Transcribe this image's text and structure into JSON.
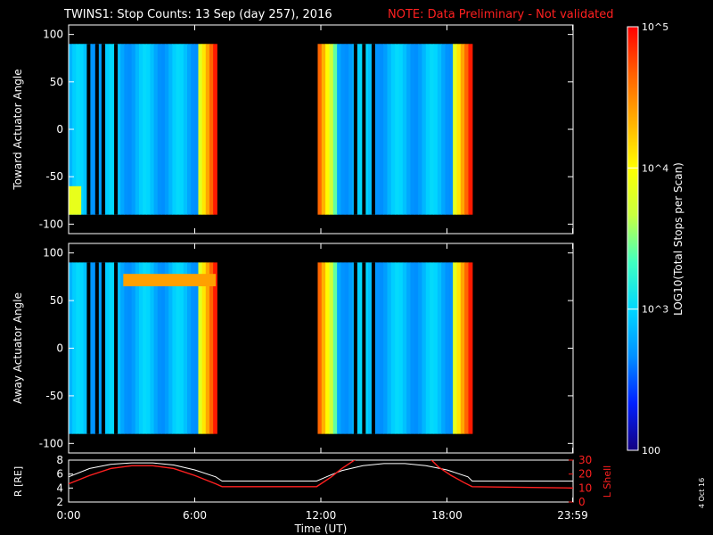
{
  "header": {
    "title": "TWINS1: Stop Counts: 13 Sep (day 257), 2016",
    "note": "NOTE: Data Preliminary - Not validated"
  },
  "stamp": "4 Oct 16",
  "colorbar": {
    "label": "LOG10(Total Stops per Scan)",
    "scale": "log",
    "range": [
      100,
      100000
    ],
    "tick_labels": [
      "10^5",
      "10^4",
      "10^3",
      "100"
    ],
    "colormap": [
      "#140080",
      "#0020ff",
      "#0090ff",
      "#00d8ff",
      "#40ffc0",
      "#c8ff40",
      "#ffff00",
      "#ffb000",
      "#ff6000",
      "#ff0000"
    ]
  },
  "chart_data": [
    {
      "type": "heatmap",
      "panel": "top",
      "ylabel": "Toward Actuator Angle",
      "ylim": [
        -110,
        110
      ],
      "yticks": [
        100,
        50,
        0,
        -50,
        -100
      ],
      "xlim": [
        0,
        24
      ],
      "x_units": "hours UT",
      "data_blocks": [
        {
          "x_start": 0.0,
          "x_end": 7.05,
          "y_range": [
            -90,
            90
          ]
        },
        {
          "x_start": 11.85,
          "x_end": 19.2,
          "y_range": [
            -90,
            90
          ]
        }
      ],
      "gaps": [
        0.95,
        1.35,
        1.65,
        2.25,
        13.65,
        14.05,
        14.5
      ],
      "typical_level": 1000
    },
    {
      "type": "heatmap",
      "panel": "middle",
      "ylabel": "Away Actuator Angle",
      "ylim": [
        -110,
        110
      ],
      "yticks": [
        100,
        50,
        0,
        -50,
        -100
      ],
      "xlim": [
        0,
        24
      ],
      "x_units": "hours UT",
      "data_blocks": [
        {
          "x_start": 0.0,
          "x_end": 7.05,
          "y_range": [
            -90,
            90
          ]
        },
        {
          "x_start": 11.85,
          "x_end": 19.2,
          "y_range": [
            -90,
            90
          ]
        }
      ],
      "gaps": [
        0.95,
        1.35,
        1.65,
        2.25,
        13.65,
        14.05,
        14.5
      ],
      "typical_level": 1000
    },
    {
      "type": "line",
      "panel": "bottom",
      "ylabel_left": "R [RE]",
      "ylabel_right": "L Shell",
      "ylim_left": [
        2,
        8
      ],
      "yticks_left": [
        8,
        6,
        4,
        2
      ],
      "ylim_right": [
        0,
        30
      ],
      "yticks_right": [
        30,
        20,
        10,
        0
      ],
      "xlabel": "Time (UT)",
      "xlim": [
        0,
        24
      ],
      "xtick_labels": [
        "0:00",
        "6:00",
        "12:00",
        "18:00",
        "23:59"
      ],
      "xticks": [
        0,
        6,
        12,
        18,
        23.98
      ],
      "series": [
        {
          "axis": "left",
          "color": "#ffffff",
          "x": [
            0,
            1,
            2,
            3,
            4,
            5,
            6,
            7,
            7.3,
            11.8,
            12.5,
            13,
            14,
            15,
            16,
            17,
            18,
            19,
            19.2,
            24
          ],
          "y": [
            5.6,
            6.8,
            7.4,
            7.6,
            7.6,
            7.3,
            6.6,
            5.6,
            5.0,
            5.0,
            5.9,
            6.5,
            7.2,
            7.5,
            7.5,
            7.2,
            6.6,
            5.6,
            5.0,
            5.0
          ]
        },
        {
          "axis": "right",
          "color": "#ff2020",
          "x": [
            0,
            1,
            2,
            3,
            4,
            5,
            6,
            7,
            7.3,
            11.8,
            12.5,
            13,
            13.7,
            17.2,
            17.6,
            18.2,
            18.8,
            19.2,
            24
          ],
          "y": [
            13,
            19,
            24,
            26,
            26,
            24,
            19,
            13,
            11,
            11,
            18,
            24,
            31,
            31,
            25,
            19,
            14,
            11,
            10
          ]
        }
      ]
    }
  ]
}
